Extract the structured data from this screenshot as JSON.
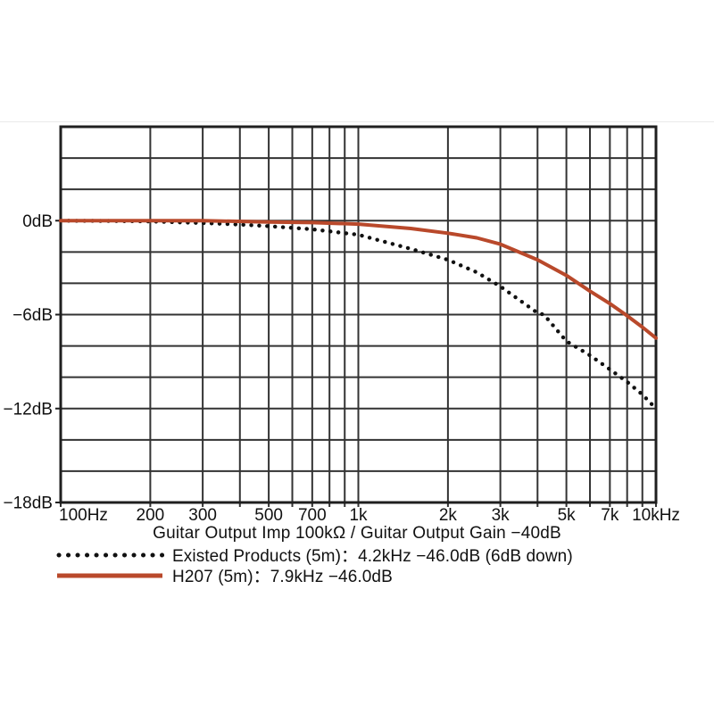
{
  "page": {
    "background": "#ffffff"
  },
  "colors": {
    "grid": "#333333",
    "axis": "#1f1f1f",
    "text": "#111111",
    "red_line": "#b9492b",
    "black_dots": "#111111",
    "faint_edge": "#eaeaea"
  },
  "chart_data": {
    "type": "line",
    "title": "",
    "xlabel": "Guitar Output Imp 100kΩ / Guitar Output Gain −40dB",
    "ylabel": "",
    "x_scale": "log",
    "xlim": [
      100,
      10000
    ],
    "ylim": [
      -18,
      6
    ],
    "y_grid_step_db": 2,
    "grid": true,
    "legend_position": "bottom-left",
    "x_gridlines_hz": [
      100,
      200,
      300,
      400,
      500,
      600,
      700,
      800,
      900,
      1000,
      2000,
      3000,
      4000,
      5000,
      6000,
      7000,
      8000,
      9000,
      10000
    ],
    "x_ticks": [
      {
        "hz": 100,
        "label": "100Hz",
        "align": "start"
      },
      {
        "hz": 200,
        "label": "200"
      },
      {
        "hz": 300,
        "label": "300"
      },
      {
        "hz": 500,
        "label": "500"
      },
      {
        "hz": 700,
        "label": "700"
      },
      {
        "hz": 1000,
        "label": "1k"
      },
      {
        "hz": 2000,
        "label": "2k"
      },
      {
        "hz": 3000,
        "label": "3k"
      },
      {
        "hz": 5000,
        "label": "5k"
      },
      {
        "hz": 7000,
        "label": "7k"
      },
      {
        "hz": 10000,
        "label": "10kHz"
      }
    ],
    "y_ticks": [
      {
        "db": 0,
        "label": "0dB"
      },
      {
        "db": -6,
        "label": "−6dB"
      },
      {
        "db": -12,
        "label": "−12dB"
      },
      {
        "db": -18,
        "label": "−18dB"
      }
    ],
    "series": [
      {
        "name": "Existed Products (5m)",
        "style": "dotted",
        "color": "#111111",
        "points": [
          [
            100,
            0
          ],
          [
            150,
            -0.02
          ],
          [
            200,
            -0.05
          ],
          [
            300,
            -0.15
          ],
          [
            400,
            -0.25
          ],
          [
            500,
            -0.35
          ],
          [
            700,
            -0.55
          ],
          [
            1000,
            -0.9
          ],
          [
            1500,
            -1.8
          ],
          [
            2000,
            -2.5
          ],
          [
            2500,
            -3.3
          ],
          [
            3000,
            -4.2
          ],
          [
            4000,
            -5.9
          ],
          [
            4200,
            -6.0
          ],
          [
            5000,
            -7.7
          ],
          [
            6000,
            -8.6
          ],
          [
            7000,
            -9.5
          ],
          [
            8000,
            -10.3
          ],
          [
            9000,
            -11.1
          ],
          [
            10000,
            -12.0
          ]
        ]
      },
      {
        "name": "H207 (5m)",
        "style": "solid",
        "color": "#b9492b",
        "points": [
          [
            100,
            0
          ],
          [
            200,
            0
          ],
          [
            300,
            0
          ],
          [
            500,
            -0.08
          ],
          [
            700,
            -0.12
          ],
          [
            1000,
            -0.22
          ],
          [
            1500,
            -0.5
          ],
          [
            2000,
            -0.8
          ],
          [
            2500,
            -1.1
          ],
          [
            3000,
            -1.5
          ],
          [
            4000,
            -2.5
          ],
          [
            5000,
            -3.5
          ],
          [
            6000,
            -4.5
          ],
          [
            7000,
            -5.3
          ],
          [
            7900,
            -6.0
          ],
          [
            9000,
            -6.8
          ],
          [
            10000,
            -7.5
          ]
        ]
      }
    ],
    "legend": [
      {
        "swatch": "dotted-black-line",
        "label": "Existed Products (5m)：4.2kHz −46.0dB (6dB down)"
      },
      {
        "swatch": "solid-red-line",
        "label": "H207 (5m)：7.9kHz −46.0dB"
      }
    ]
  }
}
